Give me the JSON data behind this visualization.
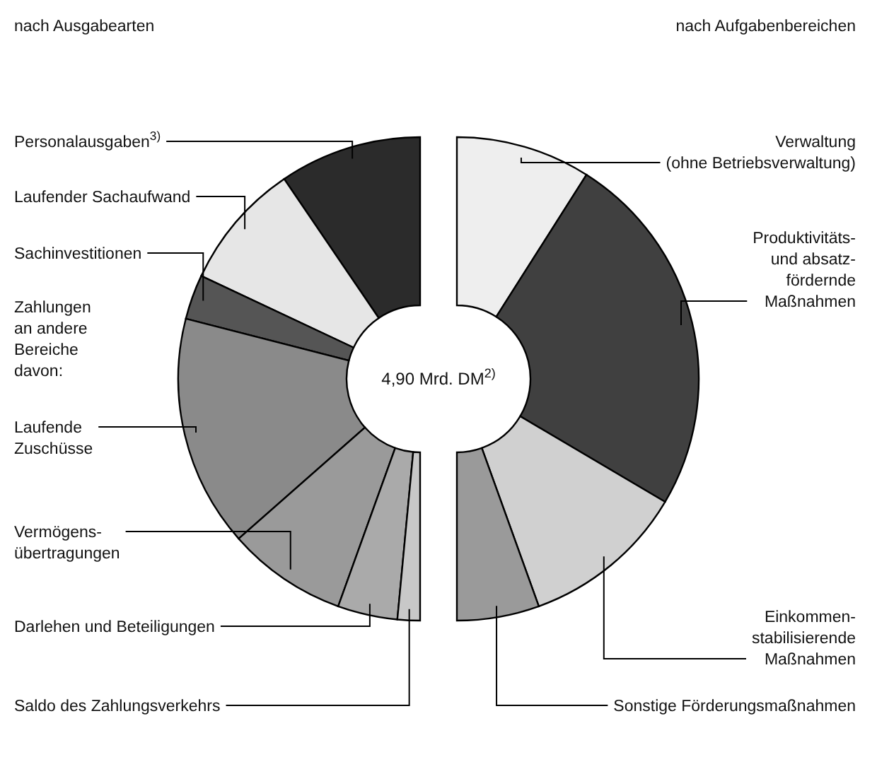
{
  "chart_data": [
    {
      "type": "donut",
      "title": "nach Ausgabearten",
      "categories": [
        "Personalausgaben$^{3)}$",
        "Laufender Sachaufwand",
        "Sachinvestitionen",
        "Laufende\nZuschüsse",
        "Vermögens-\nübertragungen",
        "Darlehen und Beteiligungen",
        "Saldo des Zahlungsverkehrs"
      ],
      "values": [
        19,
        17,
        6,
        31,
        16,
        8,
        3
      ],
      "colors": [
        "#2b2b2b",
        "#e6e6e6",
        "#555555",
        "#8a8a8a",
        "#9a9a9a",
        "#aaaaaa",
        "#c8c8c8"
      ],
      "annotations": [
        "Zahlungen\nan andere\nBereiche\ndavon:",
        "4,90 Mrd. DM$^{2)}$"
      ]
    },
    {
      "type": "donut",
      "title": "nach Aufgabenbereichen",
      "categories": [
        "Verwaltung\n(ohne Betriebsverwaltung)",
        "Produktivitäts-\nund absatz-\nfördernde\nMaßnahmen",
        "Einkommen-\nstabilisierende\nMaßnahmen",
        "Sonstige Förderungsmaßnahmen"
      ],
      "values": [
        18,
        49,
        22,
        11
      ],
      "colors": [
        "#eeeeee",
        "#404040",
        "#d0d0d0",
        "#9a9a9a"
      ]
    }
  ]
}
